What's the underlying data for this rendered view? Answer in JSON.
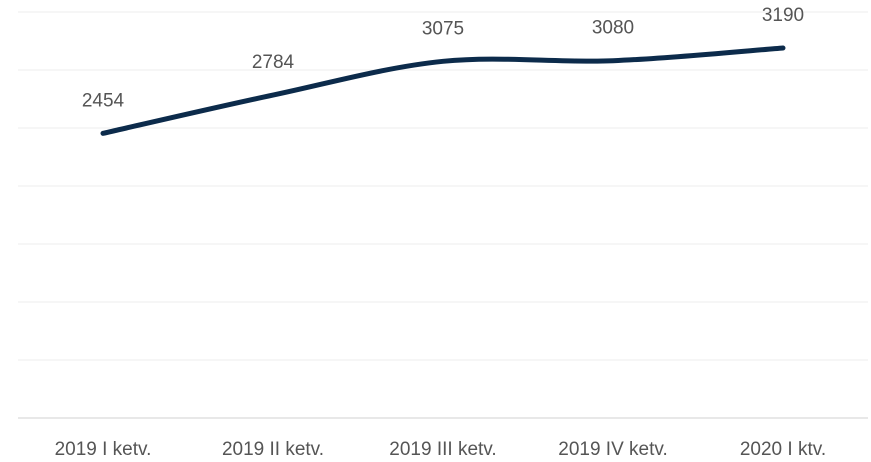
{
  "chart_data": {
    "type": "line",
    "categories": [
      "2019 I ketv.",
      "2019 II ketv.",
      "2019 III ketv.",
      "2019 IV ketv.",
      "2020 I ktv."
    ],
    "series": [
      {
        "name": null,
        "color": "#0c2b4b",
        "values": [
          2454,
          2784,
          3075,
          3080,
          3190
        ]
      }
    ],
    "ylim": [
      0,
      3500
    ],
    "yticks": [
      0,
      500,
      1000,
      1500,
      2000,
      2500,
      3000,
      3500
    ],
    "grid": true,
    "smooth": true
  }
}
